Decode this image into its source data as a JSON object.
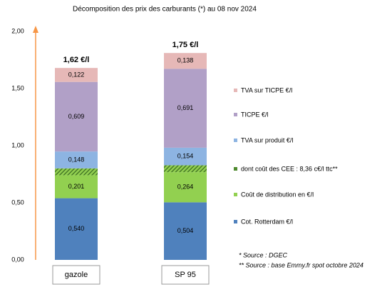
{
  "chart_data": {
    "type": "stacked-bar",
    "title": "Décomposition des prix des carburants (*) au 08 nov 2024",
    "categories": [
      "gazole",
      "SP 95"
    ],
    "series": [
      {
        "name": "Cot. Rotterdam €/l",
        "color": "#4f81bd",
        "values": [
          0.54,
          0.504
        ],
        "value_labels": [
          "0,540",
          "0,504"
        ],
        "label_color": "#ffffff"
      },
      {
        "name": "Coût de distribution en €/l",
        "color": "#92d050",
        "values": [
          0.201,
          0.264
        ],
        "value_labels": [
          "0,201",
          "0,264"
        ],
        "label_color": "#ffffff"
      },
      {
        "name": "dont coût des CEE : 8,36 c€/l ttc**",
        "color": "#4e8a2e",
        "hatched": true,
        "values": [
          0.06,
          0.06
        ]
      },
      {
        "name": "TVA sur produit €/l",
        "color": "#8db4e2",
        "values": [
          0.148,
          0.154
        ],
        "value_labels": [
          "0,148",
          "0,154"
        ],
        "label_color": "#000000"
      },
      {
        "name": "TICPE €/l",
        "color": "#b1a0c7",
        "values": [
          0.609,
          0.691
        ],
        "value_labels": [
          "0,609",
          "0,691"
        ],
        "label_color": "#000000"
      },
      {
        "name": "TVA sur TICPE €/l",
        "color": "#e6b8b7",
        "values": [
          0.122,
          0.138
        ],
        "value_labels": [
          "0,122",
          "0,138"
        ],
        "label_color": "#000000"
      }
    ],
    "totals": [
      "1,62 €/l",
      "1,75 €/l"
    ],
    "total_color": "#e53222",
    "ylim": [
      0,
      2
    ],
    "yticks": [
      {
        "value": 0,
        "label": "0,00"
      },
      {
        "value": 0.5,
        "label": "0,50"
      },
      {
        "value": 1,
        "label": "1,00"
      },
      {
        "value": 1.5,
        "label": "1,50"
      },
      {
        "value": 2,
        "label": "2,00"
      }
    ],
    "sources": [
      "* Source : DGEC",
      "** Source : base Emmy.fr spot  octobre 2024"
    ]
  }
}
